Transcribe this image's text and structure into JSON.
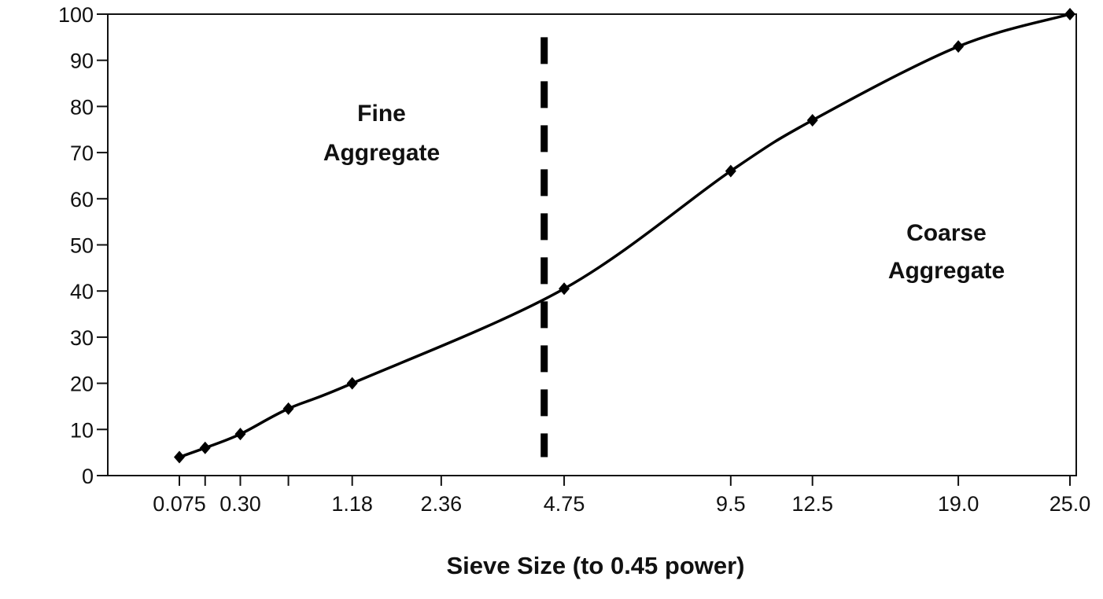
{
  "chart_data": {
    "type": "line",
    "title": "",
    "xlabel": "Sieve Size (to 0.45 power)",
    "ylabel": "",
    "x_scale": "power 0.45",
    "xlim": [
      0.075,
      25.0
    ],
    "ylim": [
      0,
      100
    ],
    "y_ticks": [
      0,
      10,
      20,
      30,
      40,
      50,
      60,
      70,
      80,
      90,
      100
    ],
    "x_ticks": [
      {
        "value": 0.075,
        "label": "0.075"
      },
      {
        "value": 0.15,
        "label": ""
      },
      {
        "value": 0.3,
        "label": "0.30"
      },
      {
        "value": 0.6,
        "label": ""
      },
      {
        "value": 1.18,
        "label": "1.18"
      },
      {
        "value": 2.36,
        "label": "2.36"
      },
      {
        "value": 4.75,
        "label": "4.75"
      },
      {
        "value": 9.5,
        "label": "9.5"
      },
      {
        "value": 12.5,
        "label": "12.5"
      },
      {
        "value": 19.0,
        "label": "19.0"
      },
      {
        "value": 25.0,
        "label": "25.0"
      }
    ],
    "grid": false,
    "series": [
      {
        "x": [
          0.075,
          0.15,
          0.3,
          0.6,
          1.18,
          4.75,
          9.5,
          12.5,
          19.0,
          25.0
        ],
        "y": [
          4,
          6,
          9,
          14.5,
          20,
          40.5,
          66,
          77,
          93,
          100
        ],
        "marker": "diamond",
        "color": "#000000"
      }
    ],
    "divider": {
      "x": 4.3,
      "y_range": [
        4,
        95
      ],
      "style": "dashed"
    },
    "annotations": [
      {
        "lines": [
          "Fine",
          "Aggregate"
        ]
      },
      {
        "lines": [
          "Coarse",
          "Aggregate"
        ]
      }
    ]
  }
}
